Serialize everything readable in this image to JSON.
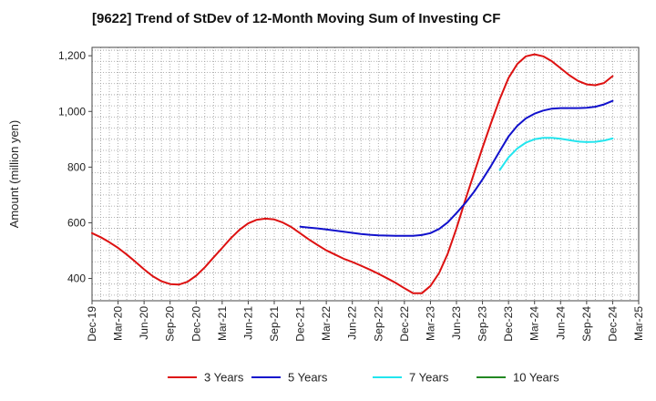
{
  "chart_data": {
    "type": "line",
    "title": "[9622]  Trend of StDev of 12-Month Moving Sum of Investing CF",
    "xlabel": "",
    "ylabel": "Amount (million yen)",
    "ylim": [
      320,
      1230
    ],
    "y_ticks": [
      400,
      600,
      800,
      1000,
      1200
    ],
    "y_tick_labels": [
      "400",
      "600",
      "800",
      "1,000",
      "1,200"
    ],
    "x_tick_labels": [
      "Dec-19",
      "Mar-20",
      "Jun-20",
      "Sep-20",
      "Dec-20",
      "Mar-21",
      "Jun-21",
      "Sep-21",
      "Dec-21",
      "Mar-22",
      "Jun-22",
      "Sep-22",
      "Dec-22",
      "Mar-23",
      "Jun-23",
      "Sep-23",
      "Dec-23",
      "Mar-24",
      "Jun-24",
      "Sep-24",
      "Dec-24",
      "Mar-25"
    ],
    "grid": true,
    "legend_position": "bottom",
    "series": [
      {
        "name": "3 Years",
        "color": "#dd1111",
        "x": [
          "Dec-19",
          "Jan-20",
          "Feb-20",
          "Mar-20",
          "Apr-20",
          "May-20",
          "Jun-20",
          "Jul-20",
          "Aug-20",
          "Sep-20",
          "Oct-20",
          "Nov-20",
          "Dec-20",
          "Jan-21",
          "Feb-21",
          "Mar-21",
          "Apr-21",
          "May-21",
          "Jun-21",
          "Jul-21",
          "Aug-21",
          "Sep-21",
          "Oct-21",
          "Nov-21",
          "Dec-21",
          "Jan-22",
          "Feb-22",
          "Mar-22",
          "Apr-22",
          "May-22",
          "Jun-22",
          "Jul-22",
          "Aug-22",
          "Sep-22",
          "Oct-22",
          "Nov-22",
          "Dec-22",
          "Jan-23",
          "Feb-23",
          "Mar-23",
          "Apr-23",
          "May-23",
          "Jun-23",
          "Jul-23",
          "Aug-23",
          "Sep-23",
          "Oct-23",
          "Nov-23",
          "Dec-23",
          "Jan-24",
          "Feb-24",
          "Mar-24",
          "Apr-24",
          "May-24",
          "Jun-24",
          "Jul-24",
          "Aug-24",
          "Sep-24",
          "Oct-24",
          "Nov-24",
          "Dec-24"
        ],
        "values": [
          563,
          548,
          530,
          510,
          486,
          460,
          433,
          408,
          390,
          380,
          378,
          388,
          410,
          440,
          475,
          510,
          545,
          575,
          598,
          611,
          615,
          612,
          601,
          584,
          562,
          540,
          520,
          501,
          486,
          471,
          459,
          446,
          432,
          417,
          401,
          384,
          365,
          347,
          347,
          373,
          420,
          490,
          580,
          680,
          775,
          870,
          960,
          1045,
          1120,
          1170,
          1198,
          1205,
          1198,
          1180,
          1155,
          1130,
          1110,
          1097,
          1094,
          1102,
          1127
        ]
      },
      {
        "name": "5 Years",
        "color": "#1111cc",
        "x": [
          "Dec-21",
          "Jan-22",
          "Feb-22",
          "Mar-22",
          "Apr-22",
          "May-22",
          "Jun-22",
          "Jul-22",
          "Aug-22",
          "Sep-22",
          "Oct-22",
          "Nov-22",
          "Dec-22",
          "Jan-23",
          "Feb-23",
          "Mar-23",
          "Apr-23",
          "May-23",
          "Jun-23",
          "Jul-23",
          "Aug-23",
          "Sep-23",
          "Oct-23",
          "Nov-23",
          "Dec-23",
          "Jan-24",
          "Feb-24",
          "Mar-24",
          "Apr-24",
          "May-24",
          "Jun-24",
          "Jul-24",
          "Aug-24",
          "Sep-24",
          "Oct-24",
          "Nov-24",
          "Dec-24"
        ],
        "values": [
          586,
          583,
          580,
          576,
          572,
          568,
          564,
          560,
          557,
          555,
          554,
          553,
          553,
          553,
          556,
          563,
          578,
          602,
          635,
          670,
          710,
          756,
          805,
          858,
          910,
          948,
          975,
          992,
          1003,
          1010,
          1012,
          1012,
          1012,
          1013,
          1017,
          1025,
          1038
        ]
      },
      {
        "name": "7 Years",
        "color": "#22e5ee",
        "x": [
          "Nov-23",
          "Dec-23",
          "Jan-24",
          "Feb-24",
          "Mar-24",
          "Apr-24",
          "May-24",
          "Jun-24",
          "Jul-24",
          "Aug-24",
          "Sep-24",
          "Oct-24",
          "Nov-24",
          "Dec-24"
        ],
        "values": [
          790,
          835,
          867,
          888,
          900,
          905,
          905,
          902,
          897,
          892,
          890,
          891,
          895,
          903
        ]
      },
      {
        "name": "10 Years",
        "color": "#228822",
        "x": [],
        "values": []
      }
    ]
  }
}
